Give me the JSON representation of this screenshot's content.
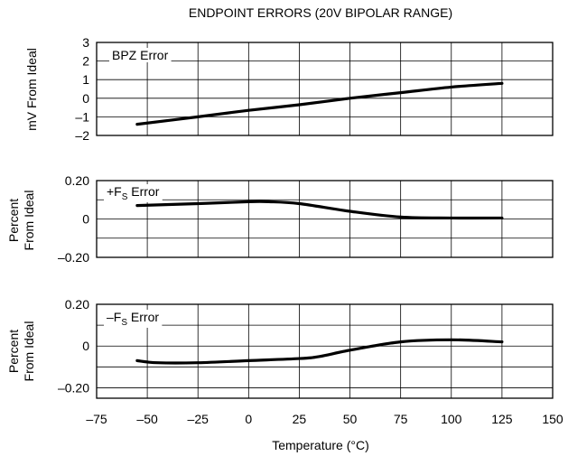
{
  "chart_data": {
    "title": "ENDPOINT ERRORS (20V BIPOLAR RANGE)",
    "xlabel": "Temperature (°C)",
    "x_ticks": [
      "–75",
      "–50",
      "–25",
      "0",
      "25",
      "50",
      "75",
      "100",
      "125",
      "150"
    ],
    "xlim": [
      -75,
      150
    ],
    "panels": [
      {
        "type": "line",
        "series_label": "BPZ Error",
        "ylabel": [
          "mV From Ideal"
        ],
        "ylim": [
          -2,
          3
        ],
        "y_ticks": [
          {
            "v": 3,
            "t": "3"
          },
          {
            "v": 2,
            "t": "2"
          },
          {
            "v": 1,
            "t": "1"
          },
          {
            "v": 0,
            "t": "0"
          },
          {
            "v": -1,
            "t": "–1"
          },
          {
            "v": -2,
            "t": "–2"
          }
        ],
        "grid_y": [
          3,
          2,
          1,
          0,
          -1,
          -2
        ],
        "x": [
          -55,
          -25,
          0,
          25,
          50,
          75,
          100,
          125
        ],
        "y": [
          -1.4,
          -1.0,
          -0.65,
          -0.35,
          0.0,
          0.3,
          0.6,
          0.8
        ]
      },
      {
        "type": "line",
        "series_label": "+F",
        "series_sub": "S",
        "series_suffix": " Error",
        "ylabel": [
          "Percent",
          "From Ideal"
        ],
        "ylim": [
          -0.2,
          0.2
        ],
        "y_ticks": [
          {
            "v": 0.2,
            "t": "0.20"
          },
          {
            "v": 0,
            "t": "0"
          },
          {
            "v": -0.2,
            "t": "–0.20"
          }
        ],
        "grid_y": [
          0.2,
          0.1,
          0,
          -0.1,
          -0.2
        ],
        "x": [
          -55,
          -25,
          0,
          10,
          25,
          50,
          75,
          100,
          125
        ],
        "y": [
          0.07,
          0.08,
          0.09,
          0.09,
          0.08,
          0.04,
          0.01,
          0.005,
          0.005
        ]
      },
      {
        "type": "line",
        "series_label": "–F",
        "series_sub": "S",
        "series_suffix": " Error",
        "ylabel": [
          "Percent",
          "From Ideal"
        ],
        "ylim": [
          -0.25,
          0.2
        ],
        "y_ticks": [
          {
            "v": 0.2,
            "t": "0.20"
          },
          {
            "v": 0,
            "t": "0"
          },
          {
            "v": -0.2,
            "t": "–0.20"
          }
        ],
        "grid_y": [
          0.2,
          0.1,
          0,
          -0.1,
          -0.2,
          -0.25
        ],
        "x": [
          -55,
          -45,
          -25,
          0,
          25,
          35,
          50,
          75,
          100,
          125
        ],
        "y": [
          -0.07,
          -0.08,
          -0.08,
          -0.07,
          -0.06,
          -0.05,
          -0.02,
          0.02,
          0.03,
          0.02
        ]
      }
    ]
  }
}
